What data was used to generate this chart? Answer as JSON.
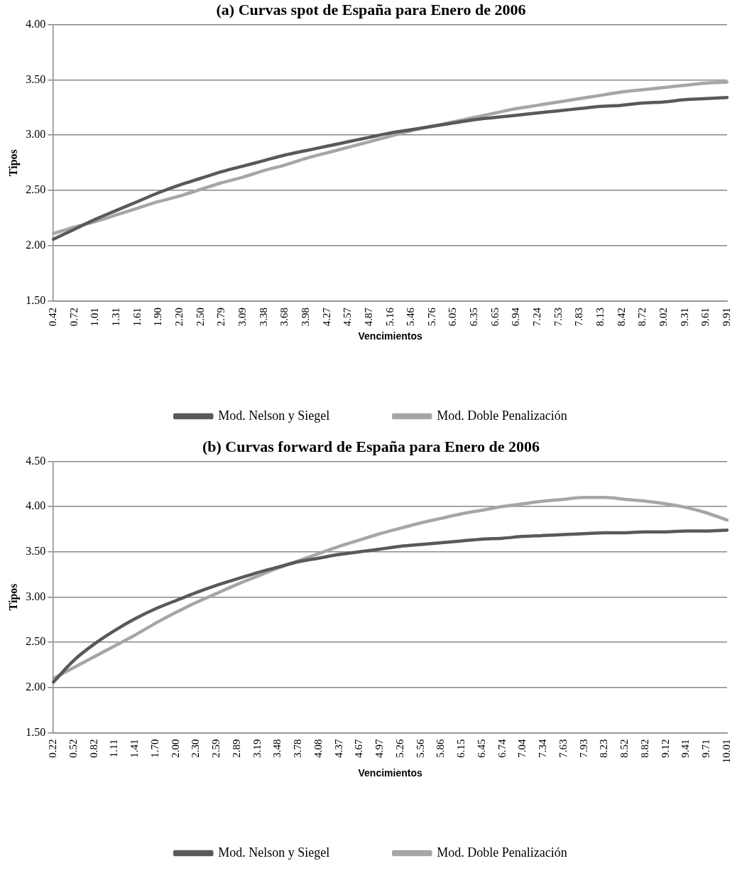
{
  "chart_data": [
    {
      "type": "line",
      "title": "(a) Curvas spot de España para Enero de 2006",
      "xlabel": "Vencimientos",
      "ylabel": "Tipos",
      "categories": [
        "0.42",
        "0.72",
        "1.01",
        "1.31",
        "1.61",
        "1.90",
        "2.20",
        "2.50",
        "2.79",
        "3.09",
        "3.38",
        "3.68",
        "3.98",
        "4.27",
        "4.57",
        "4.87",
        "5.16",
        "5.46",
        "5.76",
        "6.05",
        "6.35",
        "6.65",
        "6.94",
        "7.24",
        "7.53",
        "7.83",
        "8.13",
        "8.42",
        "8.72",
        "9.02",
        "9.31",
        "9.61",
        "9.91"
      ],
      "series": [
        {
          "name": "Mod. Nelson y Siegel",
          "color": "#595959",
          "values": [
            2.06,
            2.15,
            2.24,
            2.32,
            2.4,
            2.48,
            2.55,
            2.61,
            2.67,
            2.72,
            2.77,
            2.82,
            2.86,
            2.9,
            2.94,
            2.98,
            3.02,
            3.05,
            3.08,
            3.11,
            3.14,
            3.16,
            3.18,
            3.2,
            3.22,
            3.24,
            3.26,
            3.27,
            3.29,
            3.3,
            3.32,
            3.33,
            3.34
          ]
        },
        {
          "name": "Mod. Doble Penalización",
          "color": "#a6a6a6",
          "values": [
            2.11,
            2.17,
            2.22,
            2.28,
            2.34,
            2.4,
            2.45,
            2.51,
            2.57,
            2.62,
            2.68,
            2.73,
            2.79,
            2.84,
            2.89,
            2.94,
            2.99,
            3.04,
            3.08,
            3.12,
            3.16,
            3.2,
            3.24,
            3.27,
            3.3,
            3.33,
            3.36,
            3.39,
            3.41,
            3.43,
            3.45,
            3.47,
            3.48
          ]
        }
      ],
      "ylim": [
        1.5,
        4.0
      ],
      "yticks": [
        {
          "value": 1.5,
          "label": "1.50"
        },
        {
          "value": 2.0,
          "label": "2.00"
        },
        {
          "value": 2.5,
          "label": "2.50"
        },
        {
          "value": 3.0,
          "label": "3.00"
        },
        {
          "value": 3.5,
          "label": "3.50"
        },
        {
          "value": 4.0,
          "label": "4.00"
        }
      ],
      "grid": "y",
      "legend": "bottom",
      "marker": "none",
      "line_style": "solid"
    },
    {
      "type": "line",
      "title": "(b) Curvas forward de España para Enero de 2006",
      "xlabel": "Vencimientos",
      "ylabel": "Tipos",
      "categories": [
        "0.22",
        "0.52",
        "0.82",
        "1.11",
        "1.41",
        "1.70",
        "2.00",
        "2.30",
        "2.59",
        "2.89",
        "3.19",
        "3.48",
        "3.78",
        "4.08",
        "4.37",
        "4.67",
        "4.97",
        "5.26",
        "5.56",
        "5.86",
        "6.15",
        "6.45",
        "6.74",
        "7.04",
        "7.34",
        "7.63",
        "7.93",
        "8.23",
        "8.52",
        "8.82",
        "9.12",
        "9.41",
        "9.71",
        "10.01"
      ],
      "series": [
        {
          "name": "Mod. Nelson y Siegel",
          "color": "#595959",
          "values": [
            2.06,
            2.3,
            2.48,
            2.63,
            2.76,
            2.87,
            2.96,
            3.05,
            3.13,
            3.2,
            3.27,
            3.33,
            3.39,
            3.43,
            3.47,
            3.5,
            3.53,
            3.56,
            3.58,
            3.6,
            3.62,
            3.64,
            3.65,
            3.67,
            3.68,
            3.69,
            3.7,
            3.71,
            3.71,
            3.72,
            3.72,
            3.73,
            3.73,
            3.74
          ]
        },
        {
          "name": "Mod. Doble Penalización",
          "color": "#a6a6a6",
          "values": [
            2.1,
            2.22,
            2.34,
            2.46,
            2.58,
            2.71,
            2.83,
            2.94,
            3.04,
            3.14,
            3.23,
            3.32,
            3.4,
            3.48,
            3.56,
            3.63,
            3.7,
            3.76,
            3.82,
            3.87,
            3.92,
            3.96,
            4.0,
            4.03,
            4.06,
            4.08,
            4.1,
            4.1,
            4.08,
            4.06,
            4.03,
            3.99,
            3.93,
            3.85
          ]
        }
      ],
      "ylim": [
        1.5,
        4.5
      ],
      "yticks": [
        {
          "value": 1.5,
          "label": "1.50"
        },
        {
          "value": 2.0,
          "label": "2.00"
        },
        {
          "value": 2.5,
          "label": "2.50"
        },
        {
          "value": 3.0,
          "label": "3.00"
        },
        {
          "value": 3.5,
          "label": "3.50"
        },
        {
          "value": 4.0,
          "label": "4.00"
        },
        {
          "value": 4.5,
          "label": "4.50"
        }
      ],
      "grid": "y",
      "legend": "bottom",
      "marker": "none",
      "line_style": "solid"
    }
  ]
}
